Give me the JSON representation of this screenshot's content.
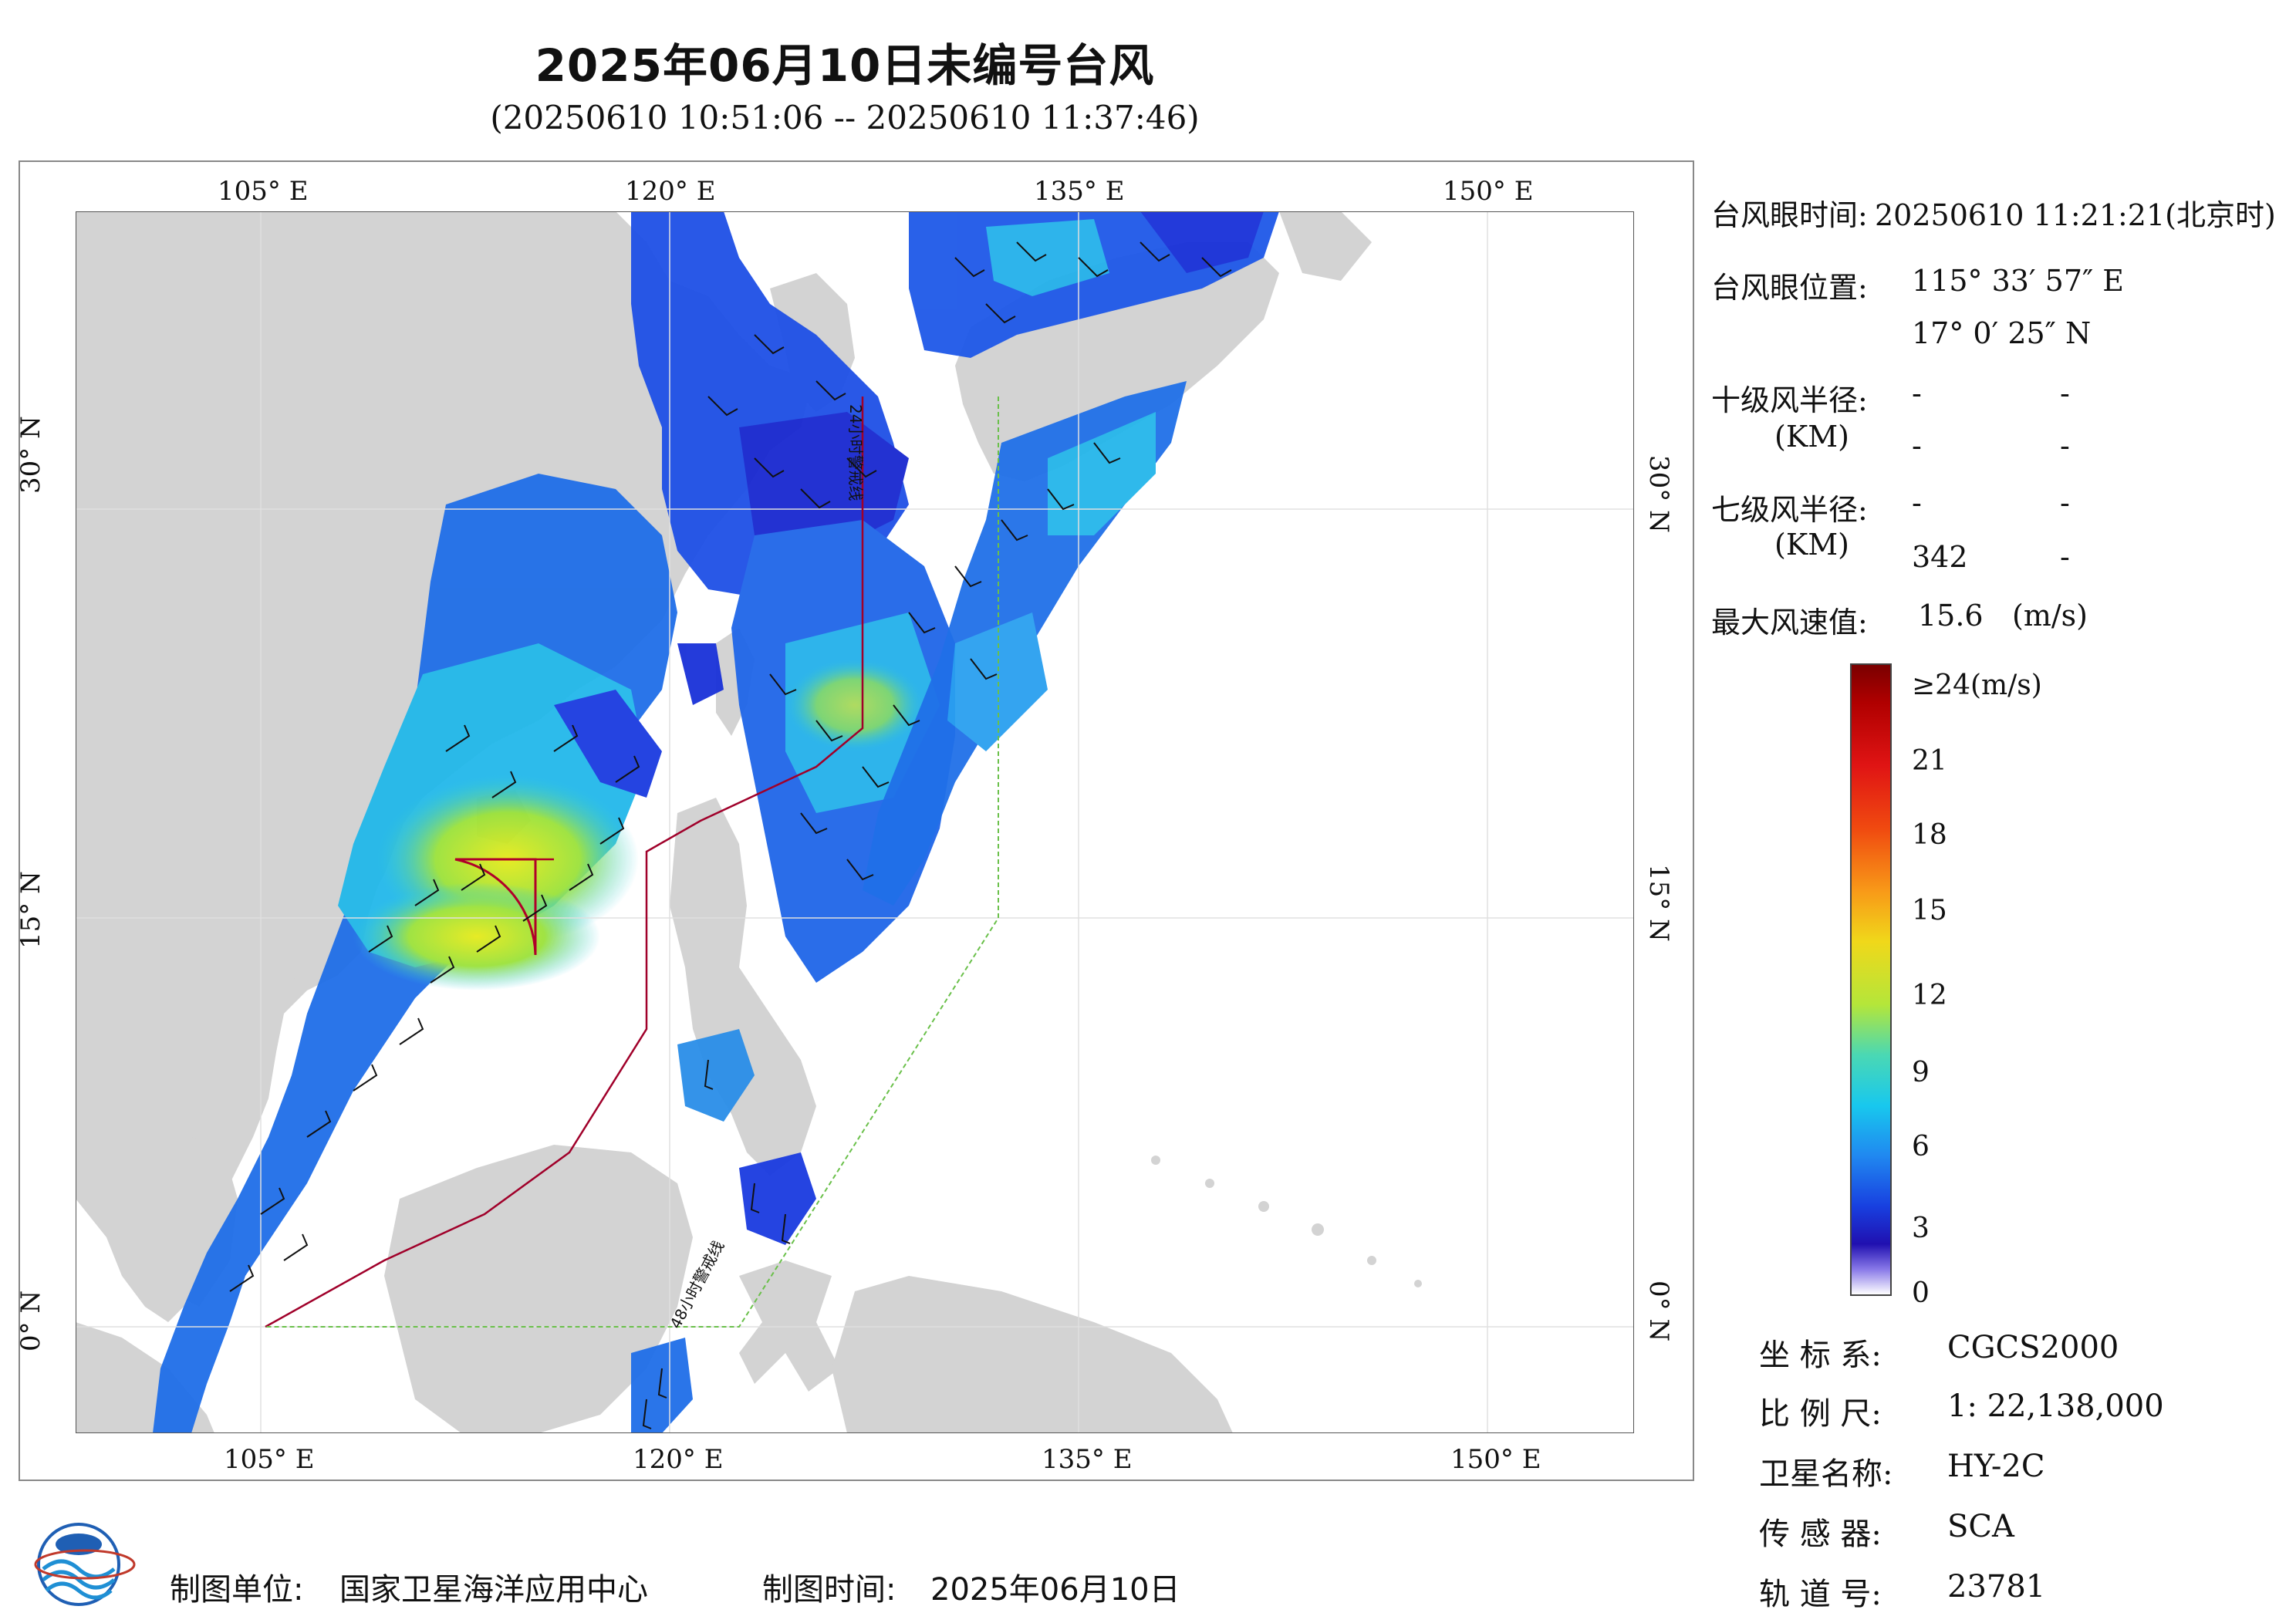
{
  "title": "2025年06月10日未编号台风",
  "subtitle": "(20250610 10:51:06 -- 20250610 11:37:46)",
  "map": {
    "lon_ticks": [
      "105° E",
      "120° E",
      "135° E",
      "150° E"
    ],
    "lat_ticks": [
      "30° N",
      "15° N",
      "0° N"
    ],
    "warning_line_24h": "24小时警戒线",
    "warning_line_48h": "48小时警戒线",
    "colors": {
      "land": "#d3d3d3",
      "sea": "#ffffff",
      "low_wind": "#1a2fe0",
      "mid_wind": "#1fc8e8",
      "high_wind": "#e8e81a",
      "track": "#b0002a",
      "line_48h": "#6ac04a"
    }
  },
  "typhoon_info": {
    "eye_time_label": "台风眼时间:",
    "eye_time_value": "20250610 11:21:21(北京时)",
    "eye_pos_label": "台风眼位置:",
    "eye_lon": "115° 33′ 57″ E",
    "eye_lat": "17° 0′ 25″ N",
    "r10_label": "十级风半径:",
    "r10_unit": "(KM)",
    "r10_row1": [
      "-",
      "-"
    ],
    "r10_row2": [
      "-",
      "-"
    ],
    "r7_label": "七级风半径:",
    "r7_unit": "(KM)",
    "r7_row1": [
      "-",
      "-"
    ],
    "r7_row2": [
      "342",
      "-"
    ],
    "max_wind_label": "最大风速值:",
    "max_wind_value": "15.6",
    "max_wind_unit": "(m/s)"
  },
  "colorbar": {
    "top_label": "≥24(m/s)",
    "ticks": [
      "21",
      "18",
      "15",
      "12",
      "9",
      "6",
      "3",
      "0"
    ]
  },
  "meta": {
    "coord_label": "坐 标 系:",
    "coord_value": "CGCS2000",
    "scale_label": "比 例 尺:",
    "scale_value": "1: 22,138,000",
    "satellite_label": "卫星名称:",
    "satellite_value": "HY-2C",
    "sensor_label": "传 感 器:",
    "sensor_value": "SCA",
    "orbit_label": "轨 道 号:",
    "orbit_value": "23781"
  },
  "footer": {
    "producer_label": "制图单位:",
    "producer_value": "国家卫星海洋应用中心",
    "time_label": "制图时间:",
    "time_value": "2025年06月10日"
  }
}
